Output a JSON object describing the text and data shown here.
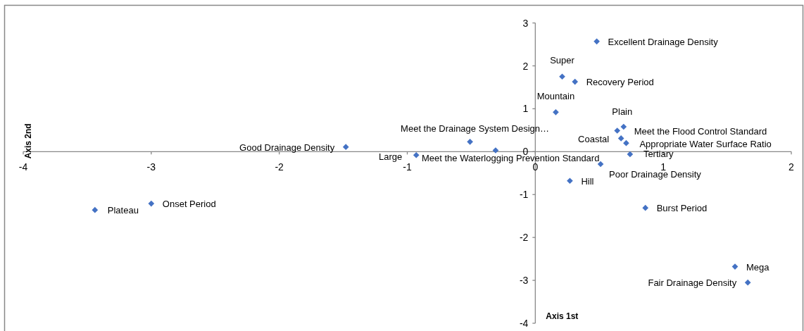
{
  "chart_data": {
    "type": "scatter",
    "xlabel": "Axis 1st",
    "ylabel": "Axis 2nd",
    "marker": "diamond",
    "xlim": [
      -4,
      2
    ],
    "ylim": [
      -4,
      3
    ],
    "xticks": [
      -4,
      -3,
      -2,
      -1,
      0,
      1,
      2
    ],
    "yticks": [
      -4,
      -3,
      -2,
      -1,
      0,
      1,
      2,
      3
    ],
    "series": [
      {
        "color": "#4472c4",
        "x": [
          -3.44,
          -3.0,
          -1.48,
          -0.93,
          -0.51,
          -0.31,
          0.48,
          0.21,
          0.31,
          0.16,
          0.69,
          0.64,
          0.67,
          0.71,
          0.74,
          0.51,
          0.27,
          0.86,
          1.56,
          1.66
        ],
        "values": [
          -1.36,
          -1.21,
          0.11,
          -0.08,
          0.23,
          0.03,
          2.57,
          1.75,
          1.63,
          0.92,
          0.58,
          0.49,
          0.31,
          0.2,
          -0.06,
          -0.29,
          -0.68,
          -1.31,
          -2.68,
          -3.05
        ]
      }
    ],
    "annotations": [
      {
        "text": "Plateau",
        "x": -3.44,
        "y": -1.36
      },
      {
        "text": "Onset Period",
        "x": -3.0,
        "y": -1.21
      },
      {
        "text": "Good Drainage Density",
        "x": -1.48,
        "y": 0.11
      },
      {
        "text": "Large",
        "x": -0.93,
        "y": -0.08
      },
      {
        "text": "Meet the Drainage System Design…",
        "x": -0.51,
        "y": 0.23
      },
      {
        "text": "Meet the Waterlogging Prevention Standard",
        "x": -0.31,
        "y": 0.03
      },
      {
        "text": "Excellent Drainage Density",
        "x": 0.48,
        "y": 2.57
      },
      {
        "text": "Super",
        "x": 0.21,
        "y": 1.75
      },
      {
        "text": "Recovery Period",
        "x": 0.31,
        "y": 1.63
      },
      {
        "text": "Mountain",
        "x": 0.16,
        "y": 0.92
      },
      {
        "text": "Plain",
        "x": 0.69,
        "y": 0.58
      },
      {
        "text": "Meet the Flood Control Standard",
        "x": 0.64,
        "y": 0.49
      },
      {
        "text": "Coastal",
        "x": 0.67,
        "y": 0.31
      },
      {
        "text": "Appropriate Water Surface Ratio",
        "x": 0.71,
        "y": 0.2
      },
      {
        "text": "Tertiary",
        "x": 0.74,
        "y": -0.06
      },
      {
        "text": "Poor Drainage Density",
        "x": 0.51,
        "y": -0.29
      },
      {
        "text": "Hill",
        "x": 0.27,
        "y": -0.68
      },
      {
        "text": "Burst Period",
        "x": 0.86,
        "y": -1.31
      },
      {
        "text": "Mega",
        "x": 1.56,
        "y": -2.68
      },
      {
        "text": "Fair Drainage Density",
        "x": 1.66,
        "y": -3.05
      }
    ]
  }
}
